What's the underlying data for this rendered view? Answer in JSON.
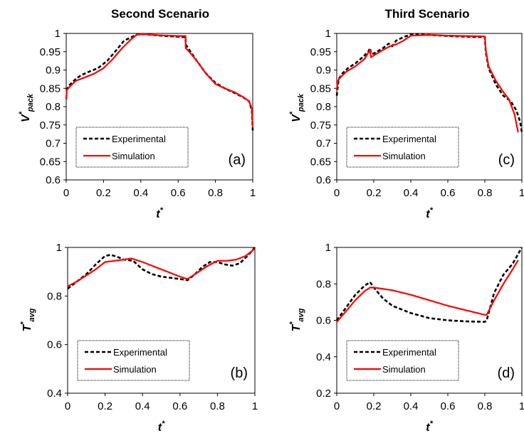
{
  "titles": [
    "Second Scenario",
    "Third Scenario"
  ],
  "chart_data": [
    {
      "id": "a",
      "type": "line",
      "title": "Second Scenario",
      "panel_label": "(a)",
      "xlabel": "t*",
      "ylabel": "V*pack",
      "xlim": [
        0,
        1
      ],
      "ylim": [
        0.6,
        1
      ],
      "xticks": [
        "0",
        "0.2",
        "0.4",
        "0.6",
        "0.8",
        "1"
      ],
      "yticks": [
        "0.6",
        "0.65",
        "0.7",
        "0.75",
        "0.8",
        "0.85",
        "0.9",
        "0.95",
        "1"
      ],
      "grid": false,
      "legend_position": "bottom-left",
      "series": [
        {
          "name": "Experimental",
          "style": "dashed",
          "color": "#000000",
          "x": [
            0,
            0.02,
            0.05,
            0.08,
            0.12,
            0.17,
            0.22,
            0.27,
            0.31,
            0.33,
            0.35,
            0.38,
            0.42,
            0.5,
            0.6,
            0.64,
            0.64,
            0.66,
            0.7,
            0.75,
            0.8,
            0.85,
            0.9,
            0.95,
            0.98,
            0.995,
            1.0
          ],
          "y": [
            0.845,
            0.86,
            0.875,
            0.886,
            0.895,
            0.905,
            0.925,
            0.955,
            0.98,
            0.985,
            0.99,
            0.997,
            0.998,
            0.994,
            0.991,
            0.99,
            0.97,
            0.955,
            0.925,
            0.89,
            0.865,
            0.85,
            0.838,
            0.825,
            0.815,
            0.79,
            0.735
          ]
        },
        {
          "name": "Simulation",
          "style": "solid",
          "color": "#ff0000",
          "x": [
            0,
            0.003,
            0.02,
            0.05,
            0.1,
            0.15,
            0.2,
            0.25,
            0.3,
            0.35,
            0.38,
            0.42,
            0.5,
            0.6,
            0.64,
            0.64,
            0.66,
            0.7,
            0.75,
            0.8,
            0.85,
            0.9,
            0.95,
            0.98,
            0.995,
            1.0
          ],
          "y": [
            0.82,
            0.845,
            0.855,
            0.87,
            0.88,
            0.89,
            0.905,
            0.93,
            0.96,
            0.985,
            0.997,
            0.998,
            0.995,
            0.993,
            0.993,
            0.96,
            0.95,
            0.925,
            0.89,
            0.862,
            0.85,
            0.84,
            0.826,
            0.815,
            0.795,
            0.745
          ]
        }
      ]
    },
    {
      "id": "c",
      "type": "line",
      "title": "Third Scenario",
      "panel_label": "(c)",
      "xlabel": "t*",
      "ylabel": "V*pack",
      "xlim": [
        0,
        1
      ],
      "ylim": [
        0.6,
        1
      ],
      "xticks": [
        "0",
        "0.2",
        "0.4",
        "0.6",
        "0.8",
        "1"
      ],
      "yticks": [
        "0.6",
        "0.65",
        "0.7",
        "0.75",
        "0.8",
        "0.85",
        "0.9",
        "0.95",
        "1"
      ],
      "grid": false,
      "legend_position": "bottom-left",
      "series": [
        {
          "name": "Experimental",
          "style": "dashed",
          "color": "#000000",
          "x": [
            0,
            0.01,
            0.03,
            0.06,
            0.1,
            0.14,
            0.17,
            0.18,
            0.185,
            0.2,
            0.25,
            0.28,
            0.3,
            0.32,
            0.36,
            0.4,
            0.5,
            0.6,
            0.7,
            0.8,
            0.805,
            0.82,
            0.86,
            0.9,
            0.94,
            0.97,
            0.99,
            1.0
          ],
          "y": [
            0.83,
            0.875,
            0.89,
            0.905,
            0.918,
            0.935,
            0.95,
            0.96,
            0.945,
            0.945,
            0.96,
            0.972,
            0.965,
            0.98,
            0.99,
            0.997,
            0.996,
            0.993,
            0.991,
            0.99,
            0.95,
            0.905,
            0.86,
            0.83,
            0.815,
            0.79,
            0.76,
            0.73
          ]
        },
        {
          "name": "Simulation",
          "style": "solid",
          "color": "#ff0000",
          "x": [
            0,
            0.005,
            0.02,
            0.05,
            0.1,
            0.15,
            0.18,
            0.185,
            0.2,
            0.25,
            0.3,
            0.32,
            0.36,
            0.4,
            0.5,
            0.6,
            0.7,
            0.8,
            0.805,
            0.82,
            0.86,
            0.9,
            0.93,
            0.96,
            0.98
          ],
          "y": [
            0.845,
            0.87,
            0.88,
            0.895,
            0.91,
            0.93,
            0.955,
            0.935,
            0.94,
            0.955,
            0.968,
            0.97,
            0.98,
            0.994,
            0.996,
            0.994,
            0.993,
            0.992,
            0.955,
            0.91,
            0.87,
            0.84,
            0.82,
            0.78,
            0.73
          ]
        }
      ]
    },
    {
      "id": "b",
      "type": "line",
      "title": "",
      "panel_label": "(b)",
      "xlabel": "t*",
      "ylabel": "T*avg",
      "xlim": [
        0,
        1
      ],
      "ylim": [
        0.4,
        1
      ],
      "xticks": [
        "0",
        "0.2",
        "0.4",
        "0.6",
        "0.8",
        "1"
      ],
      "yticks": [
        "0.4",
        "0.6",
        "0.8",
        "1"
      ],
      "grid": false,
      "legend_position": "bottom-left",
      "series": [
        {
          "name": "Experimental",
          "style": "dashed",
          "color": "#000000",
          "x": [
            0,
            0.05,
            0.1,
            0.15,
            0.2,
            0.23,
            0.27,
            0.3,
            0.35,
            0.4,
            0.45,
            0.5,
            0.55,
            0.6,
            0.64,
            0.68,
            0.72,
            0.76,
            0.8,
            0.84,
            0.88,
            0.92,
            0.96,
            1.0
          ],
          "y": [
            0.83,
            0.86,
            0.89,
            0.93,
            0.965,
            0.97,
            0.96,
            0.95,
            0.945,
            0.91,
            0.89,
            0.88,
            0.875,
            0.87,
            0.865,
            0.89,
            0.92,
            0.94,
            0.94,
            0.93,
            0.925,
            0.935,
            0.965,
            1.0
          ]
        },
        {
          "name": "Simulation",
          "style": "solid",
          "color": "#ff0000",
          "x": [
            0,
            0.05,
            0.1,
            0.15,
            0.2,
            0.25,
            0.3,
            0.34,
            0.4,
            0.45,
            0.5,
            0.55,
            0.6,
            0.64,
            0.7,
            0.75,
            0.8,
            0.85,
            0.9,
            0.95,
            1.0
          ],
          "y": [
            0.84,
            0.86,
            0.885,
            0.91,
            0.94,
            0.945,
            0.95,
            0.955,
            0.94,
            0.925,
            0.91,
            0.895,
            0.88,
            0.87,
            0.9,
            0.925,
            0.945,
            0.945,
            0.95,
            0.965,
            0.995
          ]
        }
      ]
    },
    {
      "id": "d",
      "type": "line",
      "title": "",
      "panel_label": "(d)",
      "xlabel": "t*",
      "ylabel": "T*avg",
      "xlim": [
        0,
        1
      ],
      "ylim": [
        0.2,
        1
      ],
      "xticks": [
        "0",
        "0.2",
        "0.4",
        "0.6",
        "0.8",
        "1"
      ],
      "yticks": [
        "0.2",
        "0.4",
        "0.6",
        "0.8",
        "1"
      ],
      "grid": false,
      "legend_position": "bottom-left",
      "series": [
        {
          "name": "Experimental",
          "style": "dashed",
          "color": "#000000",
          "x": [
            0,
            0.05,
            0.1,
            0.15,
            0.18,
            0.2,
            0.25,
            0.3,
            0.4,
            0.5,
            0.6,
            0.7,
            0.8,
            0.81,
            0.85,
            0.9,
            0.95,
            1.0
          ],
          "y": [
            0.6,
            0.67,
            0.74,
            0.79,
            0.81,
            0.78,
            0.72,
            0.68,
            0.64,
            0.612,
            0.6,
            0.594,
            0.592,
            0.6,
            0.75,
            0.85,
            0.91,
            1.0
          ]
        },
        {
          "name": "Simulation",
          "style": "solid",
          "color": "#ff0000",
          "x": [
            0,
            0.05,
            0.1,
            0.15,
            0.18,
            0.2,
            0.3,
            0.4,
            0.5,
            0.6,
            0.7,
            0.8,
            0.81,
            0.85,
            0.9,
            0.95,
            0.98
          ],
          "y": [
            0.59,
            0.65,
            0.71,
            0.76,
            0.78,
            0.78,
            0.765,
            0.74,
            0.71,
            0.68,
            0.655,
            0.63,
            0.63,
            0.71,
            0.8,
            0.88,
            0.93
          ]
        }
      ]
    }
  ]
}
